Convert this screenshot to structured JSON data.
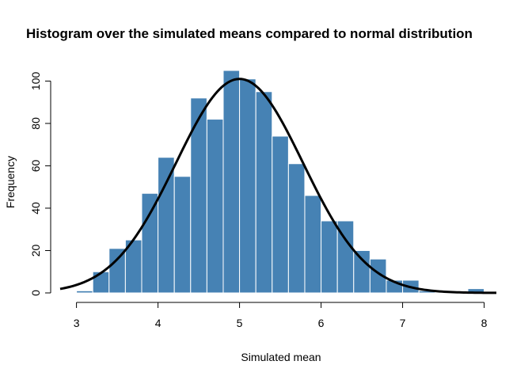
{
  "chart_data": {
    "type": "bar",
    "title": "Histogram over the simulated means compared to normal distribution",
    "xlabel": "Simulated mean",
    "ylabel": "Frequency",
    "xlim": [
      2.8,
      8.15
    ],
    "ylim": [
      0,
      105
    ],
    "x_ticks": [
      3,
      4,
      5,
      6,
      7,
      8
    ],
    "y_ticks": [
      0,
      20,
      40,
      60,
      80,
      100
    ],
    "bar_color": "#4682B4",
    "bar_border_color": "#FFFFFF",
    "curve_color": "#000000",
    "grid": false,
    "legend": "none",
    "bins": [
      {
        "x0": 3.0,
        "x1": 3.2,
        "count": 1
      },
      {
        "x0": 3.2,
        "x1": 3.4,
        "count": 10
      },
      {
        "x0": 3.4,
        "x1": 3.6,
        "count": 21
      },
      {
        "x0": 3.6,
        "x1": 3.8,
        "count": 25
      },
      {
        "x0": 3.8,
        "x1": 4.0,
        "count": 47
      },
      {
        "x0": 4.0,
        "x1": 4.2,
        "count": 64
      },
      {
        "x0": 4.2,
        "x1": 4.4,
        "count": 55
      },
      {
        "x0": 4.4,
        "x1": 4.6,
        "count": 92
      },
      {
        "x0": 4.6,
        "x1": 4.8,
        "count": 82
      },
      {
        "x0": 4.8,
        "x1": 5.0,
        "count": 105
      },
      {
        "x0": 5.0,
        "x1": 5.2,
        "count": 101
      },
      {
        "x0": 5.2,
        "x1": 5.4,
        "count": 95
      },
      {
        "x0": 5.4,
        "x1": 5.6,
        "count": 74
      },
      {
        "x0": 5.6,
        "x1": 5.8,
        "count": 61
      },
      {
        "x0": 5.8,
        "x1": 6.0,
        "count": 46
      },
      {
        "x0": 6.0,
        "x1": 6.2,
        "count": 34
      },
      {
        "x0": 6.2,
        "x1": 6.4,
        "count": 34
      },
      {
        "x0": 6.4,
        "x1": 6.6,
        "count": 20
      },
      {
        "x0": 6.6,
        "x1": 6.8,
        "count": 16
      },
      {
        "x0": 6.8,
        "x1": 7.0,
        "count": 6
      },
      {
        "x0": 7.0,
        "x1": 7.2,
        "count": 6
      },
      {
        "x0": 7.2,
        "x1": 7.4,
        "count": 1
      },
      {
        "x0": 7.4,
        "x1": 7.6,
        "count": 0
      },
      {
        "x0": 7.6,
        "x1": 7.8,
        "count": 0
      },
      {
        "x0": 7.8,
        "x1": 8.0,
        "count": 2
      }
    ],
    "normal_curve": {
      "mean": 5.0,
      "sd": 0.78,
      "peak": 101,
      "x_range": [
        2.8,
        8.15
      ]
    }
  }
}
